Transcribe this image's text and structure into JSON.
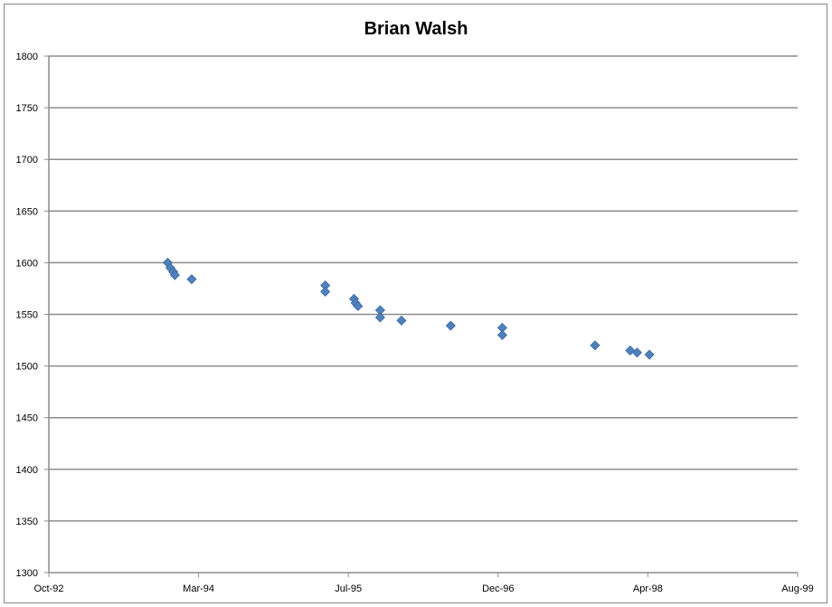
{
  "chart_data": {
    "type": "scatter",
    "title": "Brian Walsh",
    "xlabel": "",
    "ylabel": "",
    "ylim": [
      1300,
      1800
    ],
    "y_ticks": [
      1300,
      1350,
      1400,
      1450,
      1500,
      1550,
      1600,
      1650,
      1700,
      1750,
      1800
    ],
    "x_ticks": [
      "Oct-92",
      "Mar-94",
      "Jul-95",
      "Dec-96",
      "Apr-98",
      "Aug-99"
    ],
    "xlim": [
      "1992-10-01",
      "1999-08-01"
    ],
    "grid": true,
    "marker_color": "#4F81BD",
    "series": [
      {
        "points": [
          {
            "x": "1993-11-01",
            "y": 1600
          },
          {
            "x": "1993-11-10",
            "y": 1595
          },
          {
            "x": "1993-11-20",
            "y": 1591
          },
          {
            "x": "1993-11-25",
            "y": 1588
          },
          {
            "x": "1994-01-20",
            "y": 1584
          },
          {
            "x": "1995-04-10",
            "y": 1578
          },
          {
            "x": "1995-04-10",
            "y": 1572
          },
          {
            "x": "1995-07-15",
            "y": 1565
          },
          {
            "x": "1995-07-20",
            "y": 1561
          },
          {
            "x": "1995-07-28",
            "y": 1558
          },
          {
            "x": "1995-10-10",
            "y": 1554
          },
          {
            "x": "1995-10-10",
            "y": 1547
          },
          {
            "x": "1995-12-20",
            "y": 1544
          },
          {
            "x": "1996-06-01",
            "y": 1539
          },
          {
            "x": "1996-11-20",
            "y": 1537
          },
          {
            "x": "1996-11-20",
            "y": 1530
          },
          {
            "x": "1997-09-25",
            "y": 1520
          },
          {
            "x": "1998-01-20",
            "y": 1515
          },
          {
            "x": "1998-02-12",
            "y": 1513
          },
          {
            "x": "1998-03-25",
            "y": 1511
          }
        ]
      }
    ]
  }
}
